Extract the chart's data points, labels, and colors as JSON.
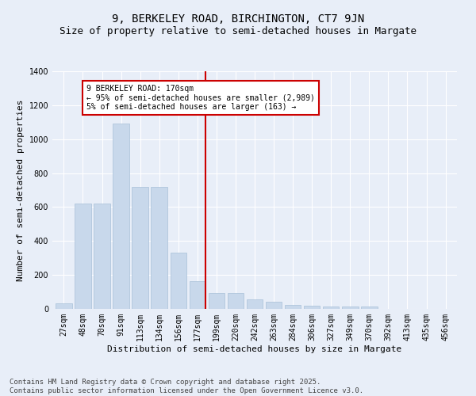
{
  "title1": "9, BERKELEY ROAD, BIRCHINGTON, CT7 9JN",
  "title2": "Size of property relative to semi-detached houses in Margate",
  "xlabel": "Distribution of semi-detached houses by size in Margate",
  "ylabel": "Number of semi-detached properties",
  "categories": [
    "27sqm",
    "48sqm",
    "70sqm",
    "91sqm",
    "113sqm",
    "134sqm",
    "156sqm",
    "177sqm",
    "199sqm",
    "220sqm",
    "242sqm",
    "263sqm",
    "284sqm",
    "306sqm",
    "327sqm",
    "349sqm",
    "370sqm",
    "392sqm",
    "413sqm",
    "435sqm",
    "456sqm"
  ],
  "values": [
    35,
    620,
    620,
    1090,
    720,
    720,
    330,
    165,
    95,
    95,
    55,
    40,
    25,
    20,
    15,
    12,
    12,
    0,
    0,
    0,
    0
  ],
  "bar_color": "#c8d8eb",
  "bar_edge_color": "#a8c0d8",
  "vline_color": "#cc0000",
  "vline_pos": 7.42,
  "annotation_text": "9 BERKELEY ROAD: 170sqm\n← 95% of semi-detached houses are smaller (2,989)\n5% of semi-detached houses are larger (163) →",
  "annotation_box_color": "#ffffff",
  "annotation_box_edgecolor": "#cc0000",
  "ylim": [
    0,
    1400
  ],
  "yticks": [
    0,
    200,
    400,
    600,
    800,
    1000,
    1200,
    1400
  ],
  "footnote": "Contains HM Land Registry data © Crown copyright and database right 2025.\nContains public sector information licensed under the Open Government Licence v3.0.",
  "bg_color": "#e8eef8",
  "plot_bg_color": "#e8eef8",
  "title1_fontsize": 10,
  "title2_fontsize": 9,
  "xlabel_fontsize": 8,
  "ylabel_fontsize": 8,
  "tick_fontsize": 7,
  "footnote_fontsize": 6.5
}
